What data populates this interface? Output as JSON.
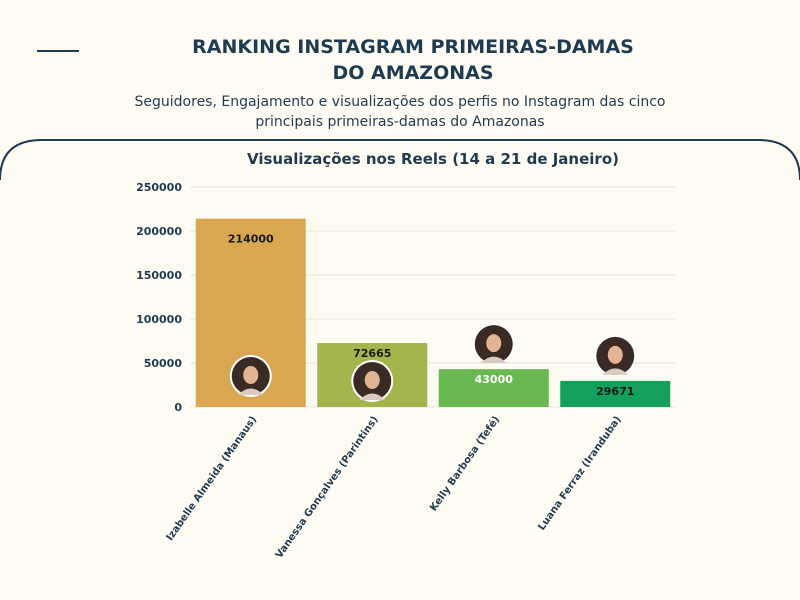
{
  "header": {
    "title_line1": "RANKING INSTAGRAM PRIMEIRAS-DAMAS",
    "title_line2": "DO AMAZONAS",
    "subtitle_line1": "Seguidores, Engajamento e visualizações dos perfis no Instagram das cinco",
    "subtitle_line2": "principais primeiras-damas do Amazonas"
  },
  "colors": {
    "background": "#fdfbf2",
    "text": "#1f3b52",
    "bars": [
      "#d9a751",
      "#a3b54c",
      "#6ab851",
      "#14a05a"
    ],
    "label_colors": [
      "#1a1a1a",
      "#1a1a1a",
      "#ffffff",
      "#1a1a1a"
    ]
  },
  "chart_data": {
    "type": "bar",
    "title": "Visualizações nos Reels (14 a 21 de Janeiro)",
    "categories": [
      "Izabelle Almeida (Manaus)",
      "Vanessa Gonçalves (Parintins)",
      "Kelly Barbosa (Tefé)",
      "Luana Ferraz (Iranduba)"
    ],
    "values": [
      214000,
      72665,
      43000,
      29671
    ],
    "data_labels": [
      "214000",
      "72665",
      "43000",
      "29671"
    ],
    "yticks": [
      0,
      50000,
      100000,
      150000,
      200000,
      250000
    ],
    "ylim": [
      0,
      250000
    ],
    "xlabel": "",
    "ylabel": "",
    "grid": true,
    "legend": "none"
  }
}
